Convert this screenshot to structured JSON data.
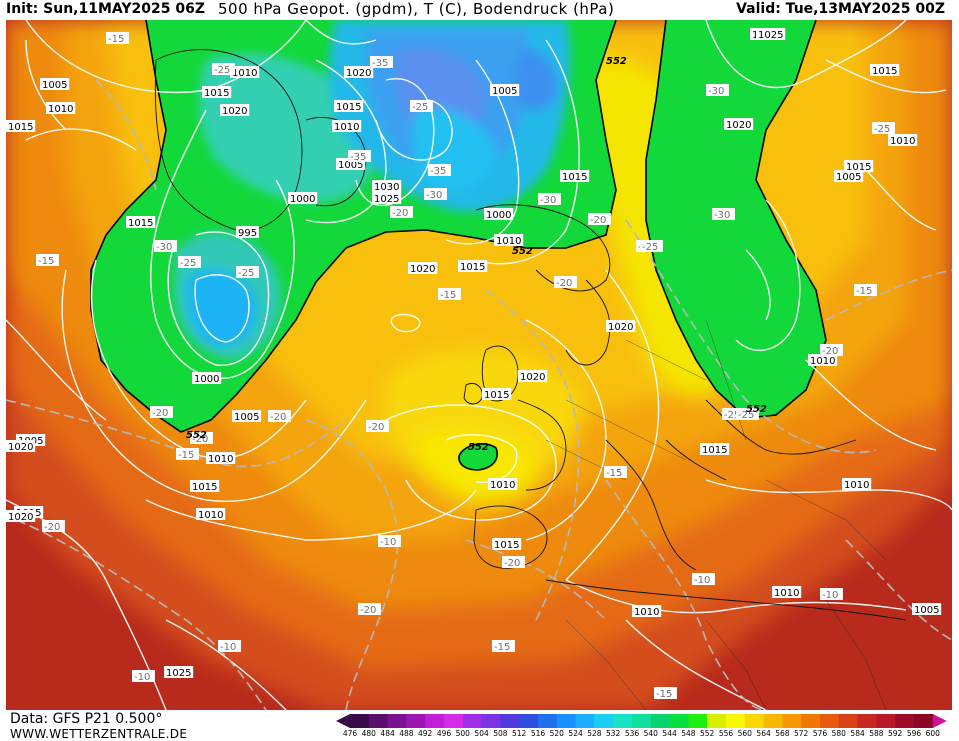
{
  "header": {
    "init": "Init: Sun,11MAY2025 06Z",
    "title": "500 hPa Geopot. (gpdm), T (C), Bodendruck (hPa)",
    "valid": "Valid: Tue,13MAY2025 00Z"
  },
  "footer": {
    "data_source": "Data: GFS P21 0.500°",
    "website": "WWW.WETTERZENTRALE.DE"
  },
  "colorbar": {
    "labels": [
      "476",
      "480",
      "484",
      "488",
      "492",
      "496",
      "500",
      "504",
      "508",
      "512",
      "516",
      "520",
      "524",
      "528",
      "532",
      "536",
      "540",
      "544",
      "548",
      "552",
      "556",
      "560",
      "564",
      "568",
      "572",
      "576",
      "580",
      "584",
      "588",
      "592",
      "596",
      "600"
    ],
    "colors": [
      "#3b0a4a",
      "#5a0f6e",
      "#7a1390",
      "#9b17b0",
      "#c21dd8",
      "#d62be6",
      "#a02ee6",
      "#7a33e6",
      "#4f3ae0",
      "#2f4ee0",
      "#1f6ff0",
      "#1a8fff",
      "#1ab0ff",
      "#19d0f0",
      "#18e2c8",
      "#10dfa0",
      "#0ad270",
      "#08e040",
      "#20ee10",
      "#d8f000",
      "#f8f800",
      "#f8d800",
      "#f8b800",
      "#f89800",
      "#f07800",
      "#e85a10",
      "#d84018",
      "#c82820",
      "#b81828",
      "#a00c28",
      "#8c0626",
      "#d01090"
    ]
  },
  "map": {
    "pressure_labels": [
      "1025",
      "1015",
      "1005",
      "1010",
      "1015",
      "1010",
      "1015",
      "1020",
      "1020",
      "1015",
      "1010",
      "1005",
      "1030",
      "1025",
      "1000",
      "1005",
      "1015",
      "1000",
      "1010",
      "1020",
      "1015",
      "1020",
      "1015",
      "1025",
      "1015",
      "1020",
      "1005",
      "1010",
      "1015",
      "1010",
      "1000",
      "1005",
      "1010",
      "1015",
      "1020",
      "1015",
      "1010",
      "1005",
      "1010",
      "1025",
      "1010",
      "1010",
      "1005",
      "1010",
      "1015",
      "1020",
      "1020",
      "995",
      "1015"
    ],
    "temp_labels": [
      "-15",
      "-35",
      "-25",
      "-30",
      "-25",
      "-30",
      "-35",
      "-30",
      "-25",
      "-30",
      "-35",
      "-30",
      "-25",
      "-20",
      "-15",
      "-25",
      "-30",
      "-20",
      "-25",
      "-20",
      "-15",
      "-20",
      "-15",
      "-20",
      "-20",
      "-20",
      "-20",
      "-10",
      "-20",
      "-15",
      "-10",
      "-10",
      "-15",
      "-10",
      "-10",
      "-20",
      "-25",
      "-25",
      "-15",
      "-20",
      "-15"
    ],
    "contour_labels_552": [
      "552",
      "552",
      "552",
      "552",
      "552"
    ],
    "colors": {
      "ocean_deep": "#c0381e",
      "orange": "#e8820c",
      "yellow": "#f8e800",
      "green": "#10d838",
      "cyan": "#18c8f0",
      "blue": "#3aa0f0"
    }
  }
}
